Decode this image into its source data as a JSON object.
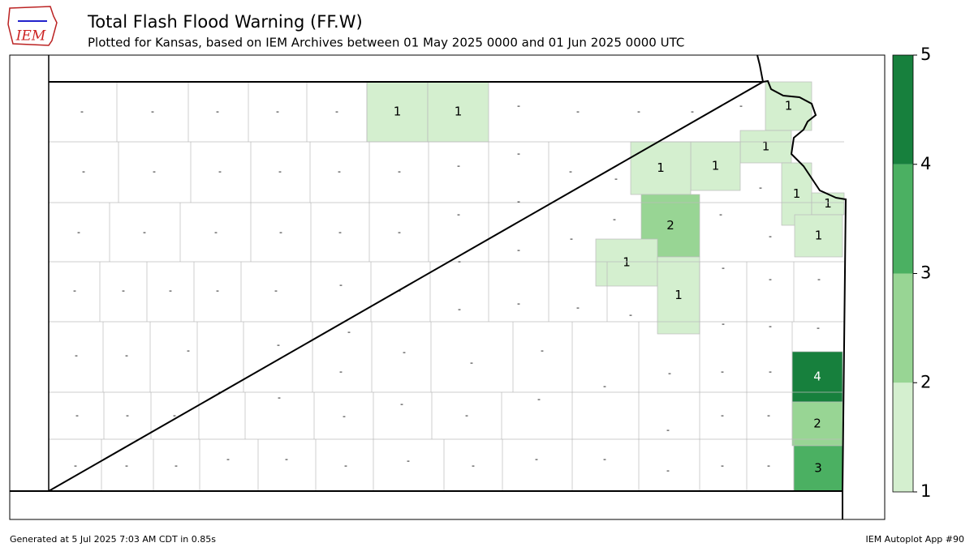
{
  "logo_text": "IEM",
  "title": "Total Flash Flood Warning (FF.W)",
  "subtitle": "Plotted for Kansas, based on IEM Archives  between 01 May 2025 0000 and 01 Jun 2025 0000 UTC",
  "no_warning_label": "-",
  "warned_counties": {
    "values": [
      1,
      1,
      1,
      1,
      1,
      1,
      1,
      1,
      1,
      2,
      1,
      1,
      4,
      2,
      3
    ]
  },
  "colorbar": {
    "ticks": [
      1,
      2,
      3,
      4,
      5
    ],
    "colors": [
      "#d4efcf",
      "#98d594",
      "#4bb062",
      "#17803d"
    ]
  },
  "footer_left": "Generated at 5 Jul 2025 7:03 AM CDT in 0.85s",
  "footer_right": "IEM Autoplot App #90"
}
